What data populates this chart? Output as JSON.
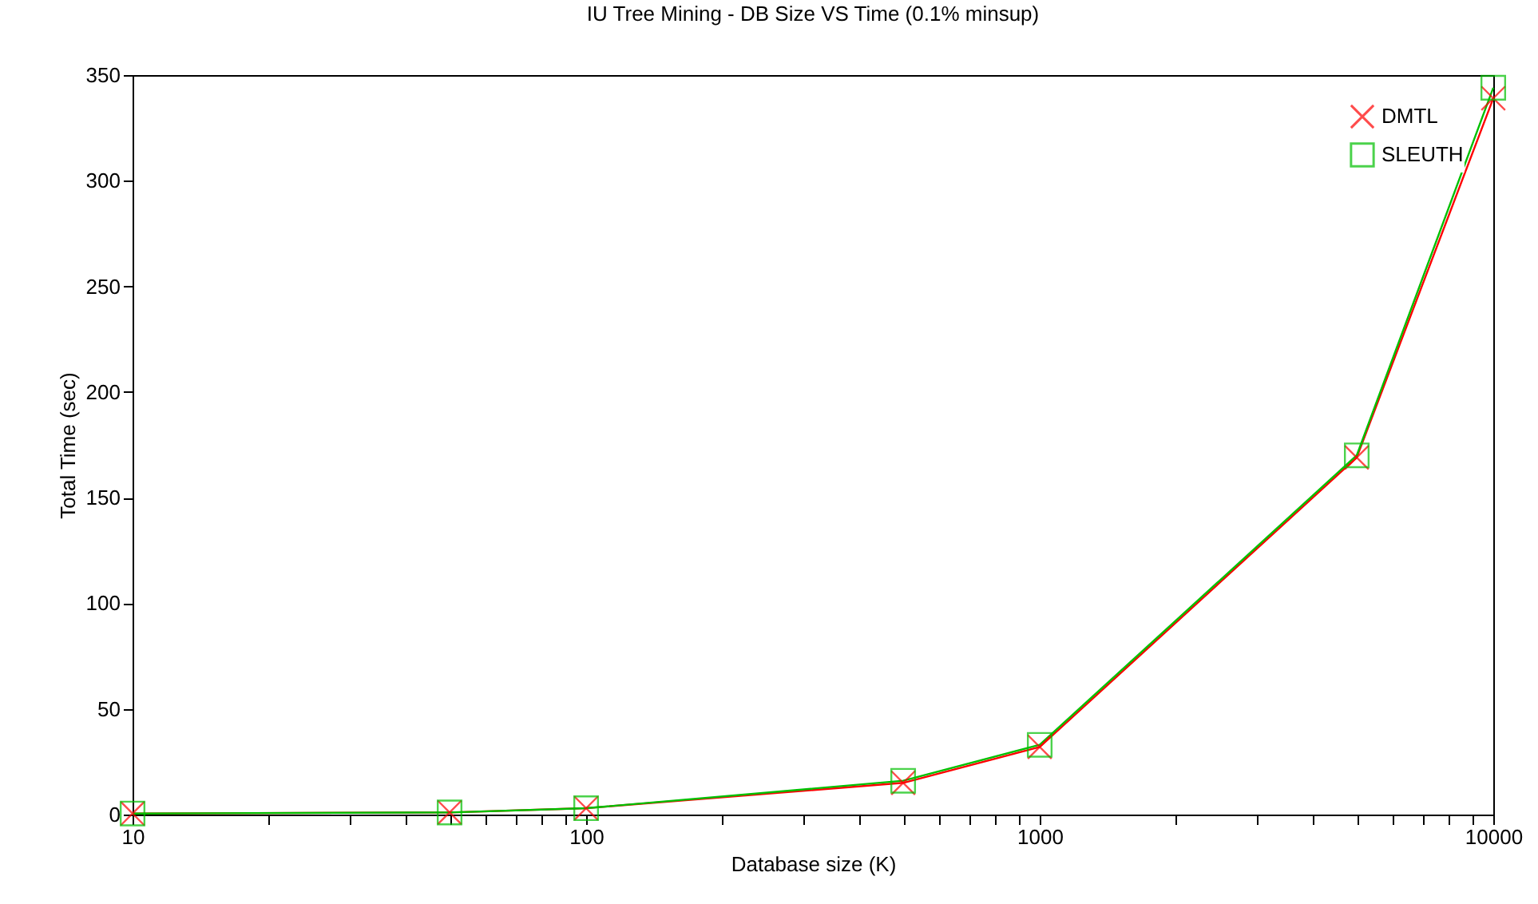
{
  "chart_data": {
    "type": "line",
    "title": "IU Tree Mining - DB Size VS Time (0.1% minsup)",
    "xlabel": "Database size (K)",
    "ylabel": "Total Time (sec)",
    "x": [
      10,
      50,
      100,
      500,
      1000,
      5000,
      10000
    ],
    "series": [
      {
        "name": "DMTL",
        "color": "#ff0000",
        "marker": "cross",
        "values": [
          0.5,
          1,
          3,
          15,
          32,
          169,
          339
        ]
      },
      {
        "name": "SLEUTH",
        "color": "#00c000",
        "marker": "square",
        "values": [
          0.5,
          1,
          3,
          16,
          33,
          170,
          344
        ]
      }
    ],
    "log": "x",
    "xlim": [
      10,
      10000
    ],
    "ylim": [
      0,
      350
    ],
    "xticks": [
      10,
      {
        "value": 20,
        "label": null
      },
      {
        "value": 30,
        "label": null
      },
      {
        "value": 40,
        "label": null
      },
      {
        "value": 50,
        "label": null
      },
      {
        "value": 60,
        "label": null
      },
      {
        "value": 70,
        "label": null
      },
      {
        "value": 80,
        "label": null
      },
      {
        "value": 90,
        "label": null
      },
      100,
      {
        "value": 200,
        "label": null
      },
      {
        "value": 300,
        "label": null
      },
      {
        "value": 400,
        "label": null
      },
      {
        "value": 500,
        "label": null
      },
      {
        "value": 600,
        "label": null
      },
      {
        "value": 700,
        "label": null
      },
      {
        "value": 800,
        "label": null
      },
      {
        "value": 900,
        "label": null
      },
      1000,
      {
        "value": 2000,
        "label": null
      },
      {
        "value": 3000,
        "label": null
      },
      {
        "value": 4000,
        "label": null
      },
      {
        "value": 5000,
        "label": null
      },
      {
        "value": 6000,
        "label": null
      },
      {
        "value": 7000,
        "label": null
      },
      {
        "value": 8000,
        "label": null
      },
      {
        "value": 9000,
        "label": null
      },
      10000
    ],
    "yticks": [
      0,
      50,
      100,
      150,
      200,
      250,
      300,
      350
    ],
    "grid": false,
    "legend": "top right",
    "line_style": "solid"
  }
}
